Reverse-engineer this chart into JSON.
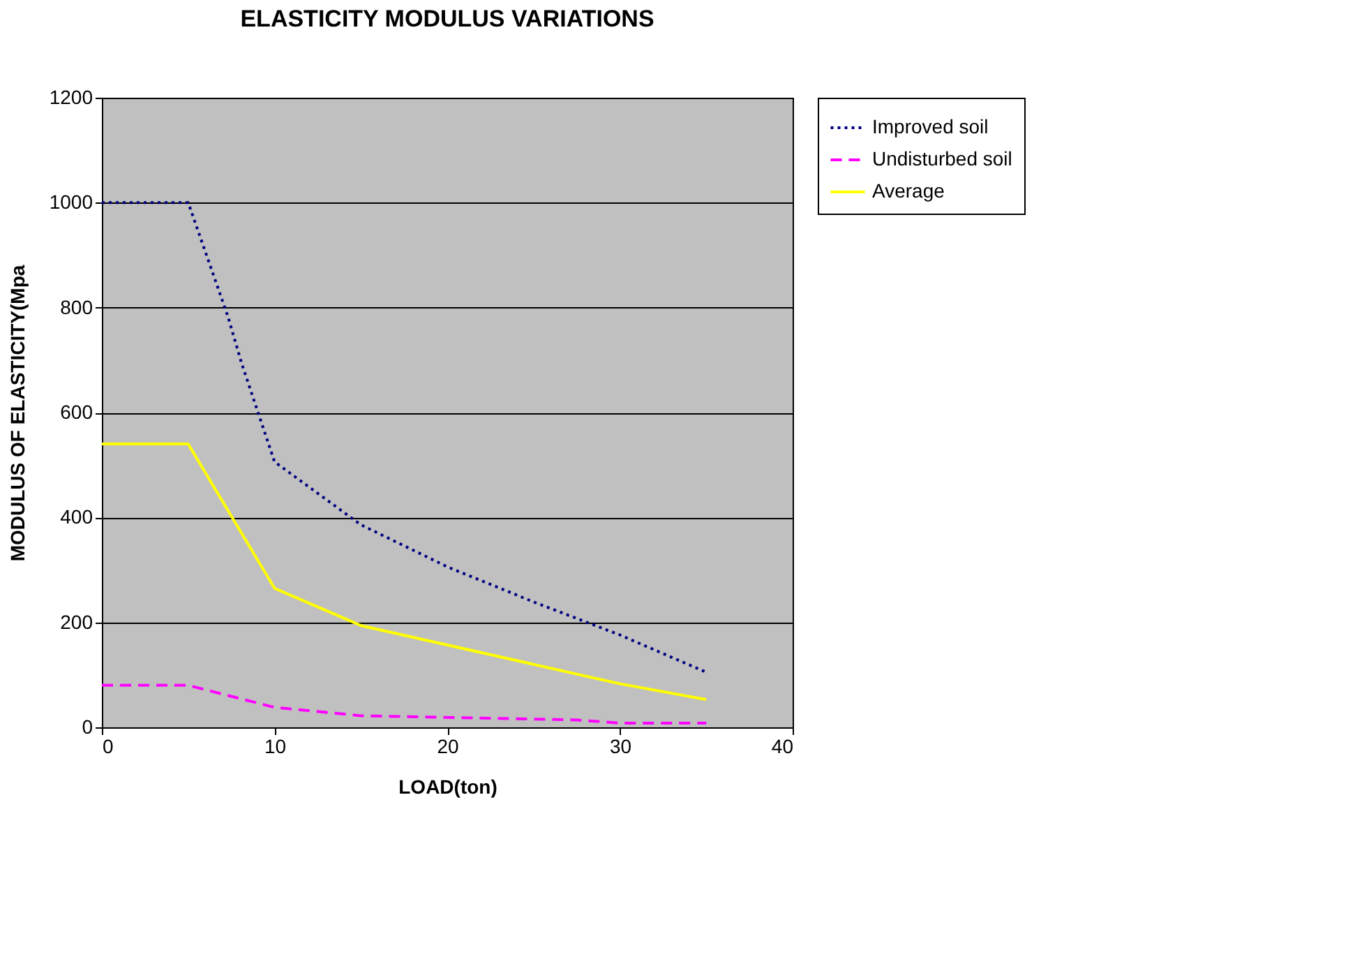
{
  "chart_data": {
    "type": "line",
    "title": "ELASTICITY MODULUS VARIATIONS",
    "xlabel": "LOAD(ton)",
    "ylabel": "MODULUS OF ELASTICITY(Mpa",
    "xlim": [
      0,
      40
    ],
    "xticks": [
      0,
      10,
      20,
      30,
      40
    ],
    "ylim": [
      0,
      1200
    ],
    "yticks": [
      0,
      200,
      400,
      600,
      800,
      1000,
      1200
    ],
    "grid": "y",
    "legend": "right",
    "marker": "none",
    "series": [
      {
        "name": "Improved soil",
        "color": "#000080",
        "line_style": "dotted",
        "x": [
          0,
          5,
          7.3,
          8.1,
          10,
          15,
          20,
          25,
          30,
          35
        ],
        "values": [
          1000,
          1000,
          783,
          693,
          506,
          386,
          306,
          239,
          176,
          105
        ]
      },
      {
        "name": "Undisturbed soil",
        "color": "#ff00ff",
        "line_style": "dashed",
        "x": [
          0,
          5,
          10,
          15,
          27.5,
          30,
          35
        ],
        "values": [
          80,
          80,
          38,
          22,
          14,
          8,
          8
        ]
      },
      {
        "name": "Average",
        "color": "#ffff00",
        "line_style": "solid",
        "x": [
          0,
          5,
          10,
          15,
          30,
          35
        ],
        "values": [
          540,
          540,
          265,
          194,
          83,
          53
        ]
      }
    ]
  }
}
